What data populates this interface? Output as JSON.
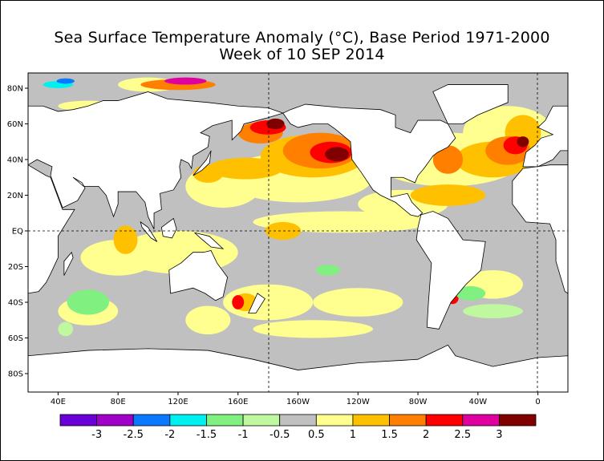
{
  "title": {
    "line1": "Sea Surface Temperature Anomaly (°C), Base Period 1971-2000",
    "line2": "Week of 10 SEP 2014"
  },
  "axes": {
    "lat_labels": [
      "80N",
      "60N",
      "40N",
      "20N",
      "EQ",
      "20S",
      "40S",
      "60S",
      "80S"
    ],
    "lat_values": [
      80,
      60,
      40,
      20,
      0,
      -20,
      -40,
      -60,
      -80
    ],
    "lon_labels": [
      "40E",
      "80E",
      "120E",
      "160E",
      "160W",
      "120W",
      "80W",
      "40W",
      "0"
    ],
    "lon_values": [
      40,
      80,
      120,
      160,
      200,
      240,
      280,
      320,
      360
    ]
  },
  "colorbar": {
    "colors": [
      "#6a00d8",
      "#a000c8",
      "#0a78ff",
      "#00f0f0",
      "#80f080",
      "#c0f8a0",
      "#c0c0c0",
      "#ffff90",
      "#ffc000",
      "#ff8000",
      "#ff0000",
      "#e000a0",
      "#800000"
    ],
    "labels": [
      "-3",
      "-2.5",
      "-2",
      "-1.5",
      "-1",
      "-0.5",
      "0.5",
      "1",
      "1.5",
      "2",
      "2.5",
      "3"
    ]
  },
  "colors": {
    "ocean_neutral": "#c0c0c0",
    "land": "#ffffff"
  }
}
